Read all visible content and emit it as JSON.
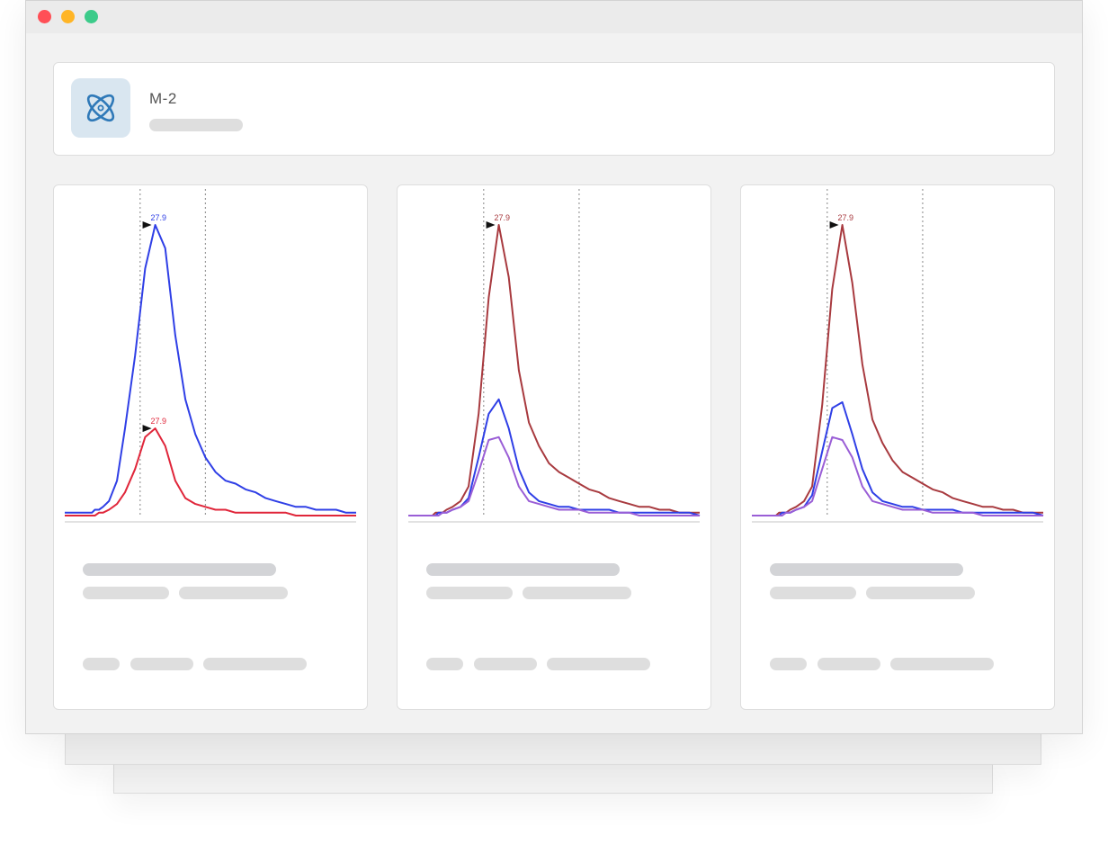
{
  "window": {
    "controls": [
      "close",
      "minimize",
      "zoom"
    ]
  },
  "header": {
    "title": "M-2",
    "icon": "atom-icon",
    "accent": "#2f79b8"
  },
  "cards": [
    {
      "chart_data": {
        "type": "line",
        "series": [
          {
            "color": "#2f3fe6",
            "x": [
              0,
              10,
              18,
              24,
              27,
              30,
              34,
              38,
              44,
              52,
              60,
              70,
              80,
              90,
              100,
              110,
              120,
              130,
              140,
              150,
              160,
              170,
              180,
              190,
              200,
              210,
              220,
              230,
              240,
              250,
              260,
              270,
              280,
              290
            ],
            "y": [
              0.01,
              0.01,
              0.01,
              0.01,
              0.01,
              0.02,
              0.02,
              0.03,
              0.05,
              0.12,
              0.3,
              0.55,
              0.85,
              1.0,
              0.92,
              0.62,
              0.4,
              0.28,
              0.2,
              0.15,
              0.12,
              0.11,
              0.09,
              0.08,
              0.06,
              0.05,
              0.04,
              0.03,
              0.03,
              0.02,
              0.02,
              0.02,
              0.01,
              0.01
            ]
          },
          {
            "color": "#e0263a",
            "x": [
              0,
              10,
              18,
              24,
              27,
              30,
              34,
              38,
              44,
              52,
              60,
              70,
              80,
              90,
              100,
              110,
              120,
              130,
              140,
              150,
              160,
              170,
              180,
              190,
              200,
              210,
              220,
              230,
              240,
              250,
              260,
              270,
              280,
              290
            ],
            "y": [
              0.0,
              0.0,
              0.0,
              0.0,
              0.0,
              0.0,
              0.01,
              0.01,
              0.02,
              0.04,
              0.08,
              0.16,
              0.27,
              0.3,
              0.24,
              0.12,
              0.06,
              0.04,
              0.03,
              0.02,
              0.02,
              0.01,
              0.01,
              0.01,
              0.01,
              0.01,
              0.01,
              0.0,
              0.0,
              0.0,
              0.0,
              0.0,
              0.0,
              0.0
            ]
          }
        ],
        "peaks": [
          {
            "label": "27.9",
            "color": "#2f3fe6",
            "at": 90,
            "value": 1.0
          },
          {
            "label": "27.9",
            "color": "#e0263a",
            "at": 90,
            "value": 0.3
          }
        ],
        "markers": [
          75,
          140
        ]
      }
    },
    {
      "chart_data": {
        "type": "line",
        "series": [
          {
            "color": "#a83a3f",
            "x": [
              0,
              10,
              18,
              24,
              27,
              30,
              34,
              38,
              44,
              52,
              60,
              70,
              80,
              90,
              100,
              110,
              120,
              130,
              140,
              150,
              160,
              170,
              180,
              190,
              200,
              210,
              220,
              230,
              240,
              250,
              260,
              270,
              280,
              290
            ],
            "y": [
              0.0,
              0.0,
              0.0,
              0.0,
              0.01,
              0.01,
              0.01,
              0.02,
              0.03,
              0.05,
              0.1,
              0.35,
              0.75,
              1.0,
              0.82,
              0.5,
              0.32,
              0.24,
              0.18,
              0.15,
              0.13,
              0.11,
              0.09,
              0.08,
              0.06,
              0.05,
              0.04,
              0.03,
              0.03,
              0.02,
              0.02,
              0.01,
              0.01,
              0.01
            ]
          },
          {
            "color": "#2f3fe6",
            "x": [
              0,
              10,
              18,
              24,
              27,
              30,
              34,
              38,
              44,
              52,
              60,
              70,
              80,
              90,
              100,
              110,
              120,
              130,
              140,
              150,
              160,
              170,
              180,
              190,
              200,
              210,
              220,
              230,
              240,
              250,
              260,
              270,
              280,
              290
            ],
            "y": [
              0.0,
              0.0,
              0.0,
              0.0,
              0.0,
              0.01,
              0.01,
              0.01,
              0.02,
              0.03,
              0.06,
              0.2,
              0.35,
              0.4,
              0.3,
              0.16,
              0.08,
              0.05,
              0.04,
              0.03,
              0.03,
              0.02,
              0.02,
              0.02,
              0.02,
              0.01,
              0.01,
              0.01,
              0.01,
              0.01,
              0.01,
              0.01,
              0.01,
              0.0
            ]
          },
          {
            "color": "#9a5ed6",
            "x": [
              0,
              10,
              18,
              24,
              27,
              30,
              34,
              38,
              44,
              52,
              60,
              70,
              80,
              90,
              100,
              110,
              120,
              130,
              140,
              150,
              160,
              170,
              180,
              190,
              200,
              210,
              220,
              230,
              240,
              250,
              260,
              270,
              280,
              290
            ],
            "y": [
              0.0,
              0.0,
              0.0,
              0.0,
              0.0,
              0.0,
              0.01,
              0.01,
              0.02,
              0.03,
              0.05,
              0.15,
              0.26,
              0.27,
              0.2,
              0.1,
              0.05,
              0.04,
              0.03,
              0.02,
              0.02,
              0.02,
              0.01,
              0.01,
              0.01,
              0.01,
              0.01,
              0.0,
              0.0,
              0.0,
              0.0,
              0.0,
              0.0,
              0.0
            ]
          }
        ],
        "peaks": [
          {
            "label": "27.9",
            "color": "#a83a3f",
            "at": 90,
            "value": 1.0
          }
        ],
        "markers": [
          75,
          170
        ]
      }
    },
    {
      "chart_data": {
        "type": "line",
        "series": [
          {
            "color": "#a83a3f",
            "x": [
              0,
              10,
              18,
              24,
              27,
              30,
              34,
              38,
              44,
              52,
              60,
              70,
              80,
              90,
              100,
              110,
              120,
              130,
              140,
              150,
              160,
              170,
              180,
              190,
              200,
              210,
              220,
              230,
              240,
              250,
              260,
              270,
              280,
              290
            ],
            "y": [
              0.0,
              0.0,
              0.0,
              0.0,
              0.01,
              0.01,
              0.01,
              0.02,
              0.03,
              0.05,
              0.1,
              0.38,
              0.78,
              1.0,
              0.8,
              0.52,
              0.33,
              0.25,
              0.19,
              0.15,
              0.13,
              0.11,
              0.09,
              0.08,
              0.06,
              0.05,
              0.04,
              0.03,
              0.03,
              0.02,
              0.02,
              0.01,
              0.01,
              0.01
            ]
          },
          {
            "color": "#2f3fe6",
            "x": [
              0,
              10,
              18,
              24,
              27,
              30,
              34,
              38,
              44,
              52,
              60,
              70,
              80,
              90,
              100,
              110,
              120,
              130,
              140,
              150,
              160,
              170,
              180,
              190,
              200,
              210,
              220,
              230,
              240,
              250,
              260,
              270,
              280,
              290
            ],
            "y": [
              0.0,
              0.0,
              0.0,
              0.0,
              0.0,
              0.01,
              0.01,
              0.01,
              0.02,
              0.03,
              0.07,
              0.22,
              0.37,
              0.39,
              0.28,
              0.16,
              0.08,
              0.05,
              0.04,
              0.03,
              0.03,
              0.02,
              0.02,
              0.02,
              0.02,
              0.01,
              0.01,
              0.01,
              0.01,
              0.01,
              0.01,
              0.01,
              0.01,
              0.0
            ]
          },
          {
            "color": "#9a5ed6",
            "x": [
              0,
              10,
              18,
              24,
              27,
              30,
              34,
              38,
              44,
              52,
              60,
              70,
              80,
              90,
              100,
              110,
              120,
              130,
              140,
              150,
              160,
              170,
              180,
              190,
              200,
              210,
              220,
              230,
              240,
              250,
              260,
              270,
              280,
              290
            ],
            "y": [
              0.0,
              0.0,
              0.0,
              0.0,
              0.0,
              0.0,
              0.01,
              0.01,
              0.02,
              0.03,
              0.05,
              0.16,
              0.27,
              0.26,
              0.2,
              0.1,
              0.05,
              0.04,
              0.03,
              0.02,
              0.02,
              0.02,
              0.01,
              0.01,
              0.01,
              0.01,
              0.01,
              0.0,
              0.0,
              0.0,
              0.0,
              0.0,
              0.0,
              0.0
            ]
          }
        ],
        "peaks": [
          {
            "label": "27.9",
            "color": "#a83a3f",
            "at": 90,
            "value": 1.0
          }
        ],
        "markers": [
          75,
          170
        ]
      }
    }
  ]
}
